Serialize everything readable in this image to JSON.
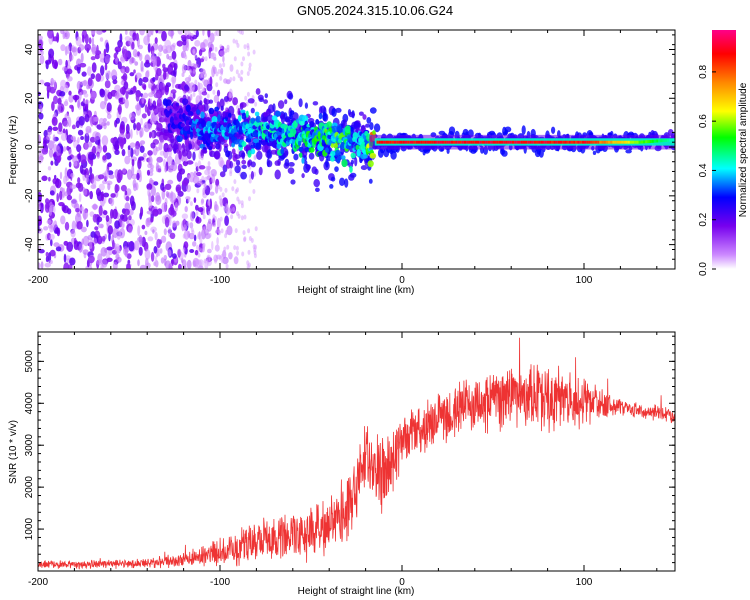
{
  "title": "GN05.2024.315.10.06.G24",
  "colors": {
    "snr_line": "#ee3333",
    "axis": "#000000",
    "bg": "#ffffff",
    "colormap": [
      "#ffffff",
      "#cc88ff",
      "#7700ee",
      "#0000ff",
      "#00ffff",
      "#00ff00",
      "#ffff00",
      "#ff8800",
      "#ff0000",
      "#ff0088"
    ]
  },
  "chart_data": [
    {
      "type": "heatmap",
      "title": "GN05.2024.315.10.06.G24",
      "xlabel": "Height of straight line (km)",
      "ylabel": "Frequency (Hz)",
      "xlim": [
        -200,
        150
      ],
      "ylim": [
        -50,
        48
      ],
      "xticks": [
        -200,
        -100,
        0,
        100
      ],
      "yticks": [
        -40,
        -20,
        0,
        20,
        40
      ],
      "colorbar": {
        "label": "Normalized spectral amplitude",
        "range": [
          0,
          0.97
        ],
        "ticks": [
          0,
          0.2,
          0.4,
          0.6,
          0.8
        ]
      },
      "ridge": {
        "x": [
          -130,
          -110,
          -90,
          -70,
          -50,
          -35,
          -20,
          -15,
          0,
          50,
          100,
          130,
          150
        ],
        "freq": [
          12,
          8,
          6,
          5,
          4,
          3,
          1,
          2,
          2,
          2,
          2,
          2,
          3
        ],
        "amplitude": [
          0.25,
          0.35,
          0.4,
          0.45,
          0.5,
          0.55,
          0.4,
          0.9,
          0.92,
          0.92,
          0.9,
          0.6,
          0.45
        ]
      }
    },
    {
      "type": "line",
      "xlabel": "Height of straight line (km)",
      "ylabel": "SNR (10 * v/v)",
      "xlim": [
        -200,
        150
      ],
      "ylim": [
        0,
        5700
      ],
      "xticks": [
        -200,
        -100,
        0,
        100
      ],
      "yticks": [
        1000,
        2000,
        3000,
        4000,
        5000
      ],
      "envelope": {
        "x": [
          -200,
          -150,
          -120,
          -100,
          -80,
          -60,
          -40,
          -30,
          -25,
          -20,
          -15,
          -8,
          0,
          20,
          40,
          60,
          80,
          100,
          120,
          150
        ],
        "mean": [
          150,
          170,
          250,
          450,
          700,
          900,
          1000,
          1500,
          2200,
          2700,
          2200,
          2500,
          3000,
          3700,
          4000,
          4200,
          4100,
          4050,
          3900,
          3700
        ],
        "spread": [
          120,
          120,
          200,
          400,
          600,
          700,
          750,
          900,
          1200,
          1200,
          1500,
          1000,
          800,
          700,
          900,
          900,
          1000,
          700,
          200,
          250
        ]
      }
    }
  ]
}
